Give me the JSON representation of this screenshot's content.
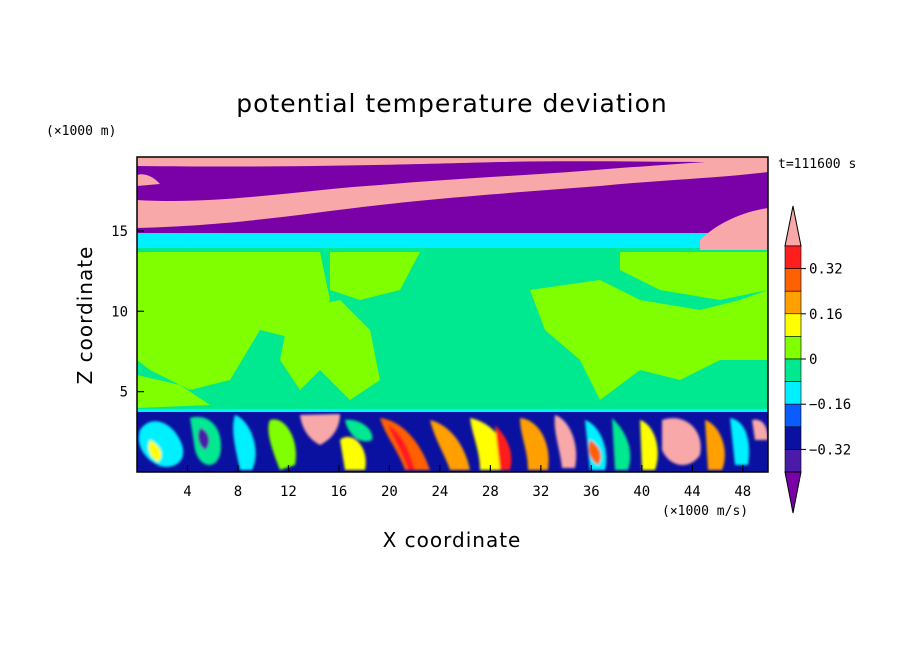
{
  "chart_data": {
    "type": "heatmap",
    "title": "potential temperature deviation",
    "xlabel": "X coordinate",
    "ylabel": "Z coordinate",
    "x_unit": "(×1000 m/s)",
    "y_unit": "(×1000 m)",
    "time_label": "t=111600 s",
    "xlim": [
      0,
      50
    ],
    "ylim": [
      0,
      19.6
    ],
    "x_ticks": [
      4,
      8,
      12,
      16,
      20,
      24,
      28,
      32,
      36,
      40,
      44,
      48
    ],
    "y_ticks": [
      5,
      10,
      15
    ],
    "colorbar": {
      "colors": [
        "#7a00a8",
        "#4a1aa8",
        "#0a10a0",
        "#0a5cff",
        "#00f0ff",
        "#00e890",
        "#80ff00",
        "#ffff00",
        "#ffa000",
        "#ff6000",
        "#ff1e1e",
        "#f8a8a8"
      ],
      "levels": [
        -0.4,
        -0.32,
        -0.24,
        -0.16,
        -0.08,
        0,
        0.08,
        0.16,
        0.24,
        0.32,
        0.4
      ],
      "tick_labels": [
        {
          "value": 0.32,
          "label": "0.32"
        },
        {
          "value": 0.16,
          "label": "0.16"
        },
        {
          "value": 0,
          "label": "0"
        },
        {
          "value": -0.16,
          "label": "−0.16"
        },
        {
          "value": -0.32,
          "label": "−0.32"
        }
      ]
    }
  }
}
